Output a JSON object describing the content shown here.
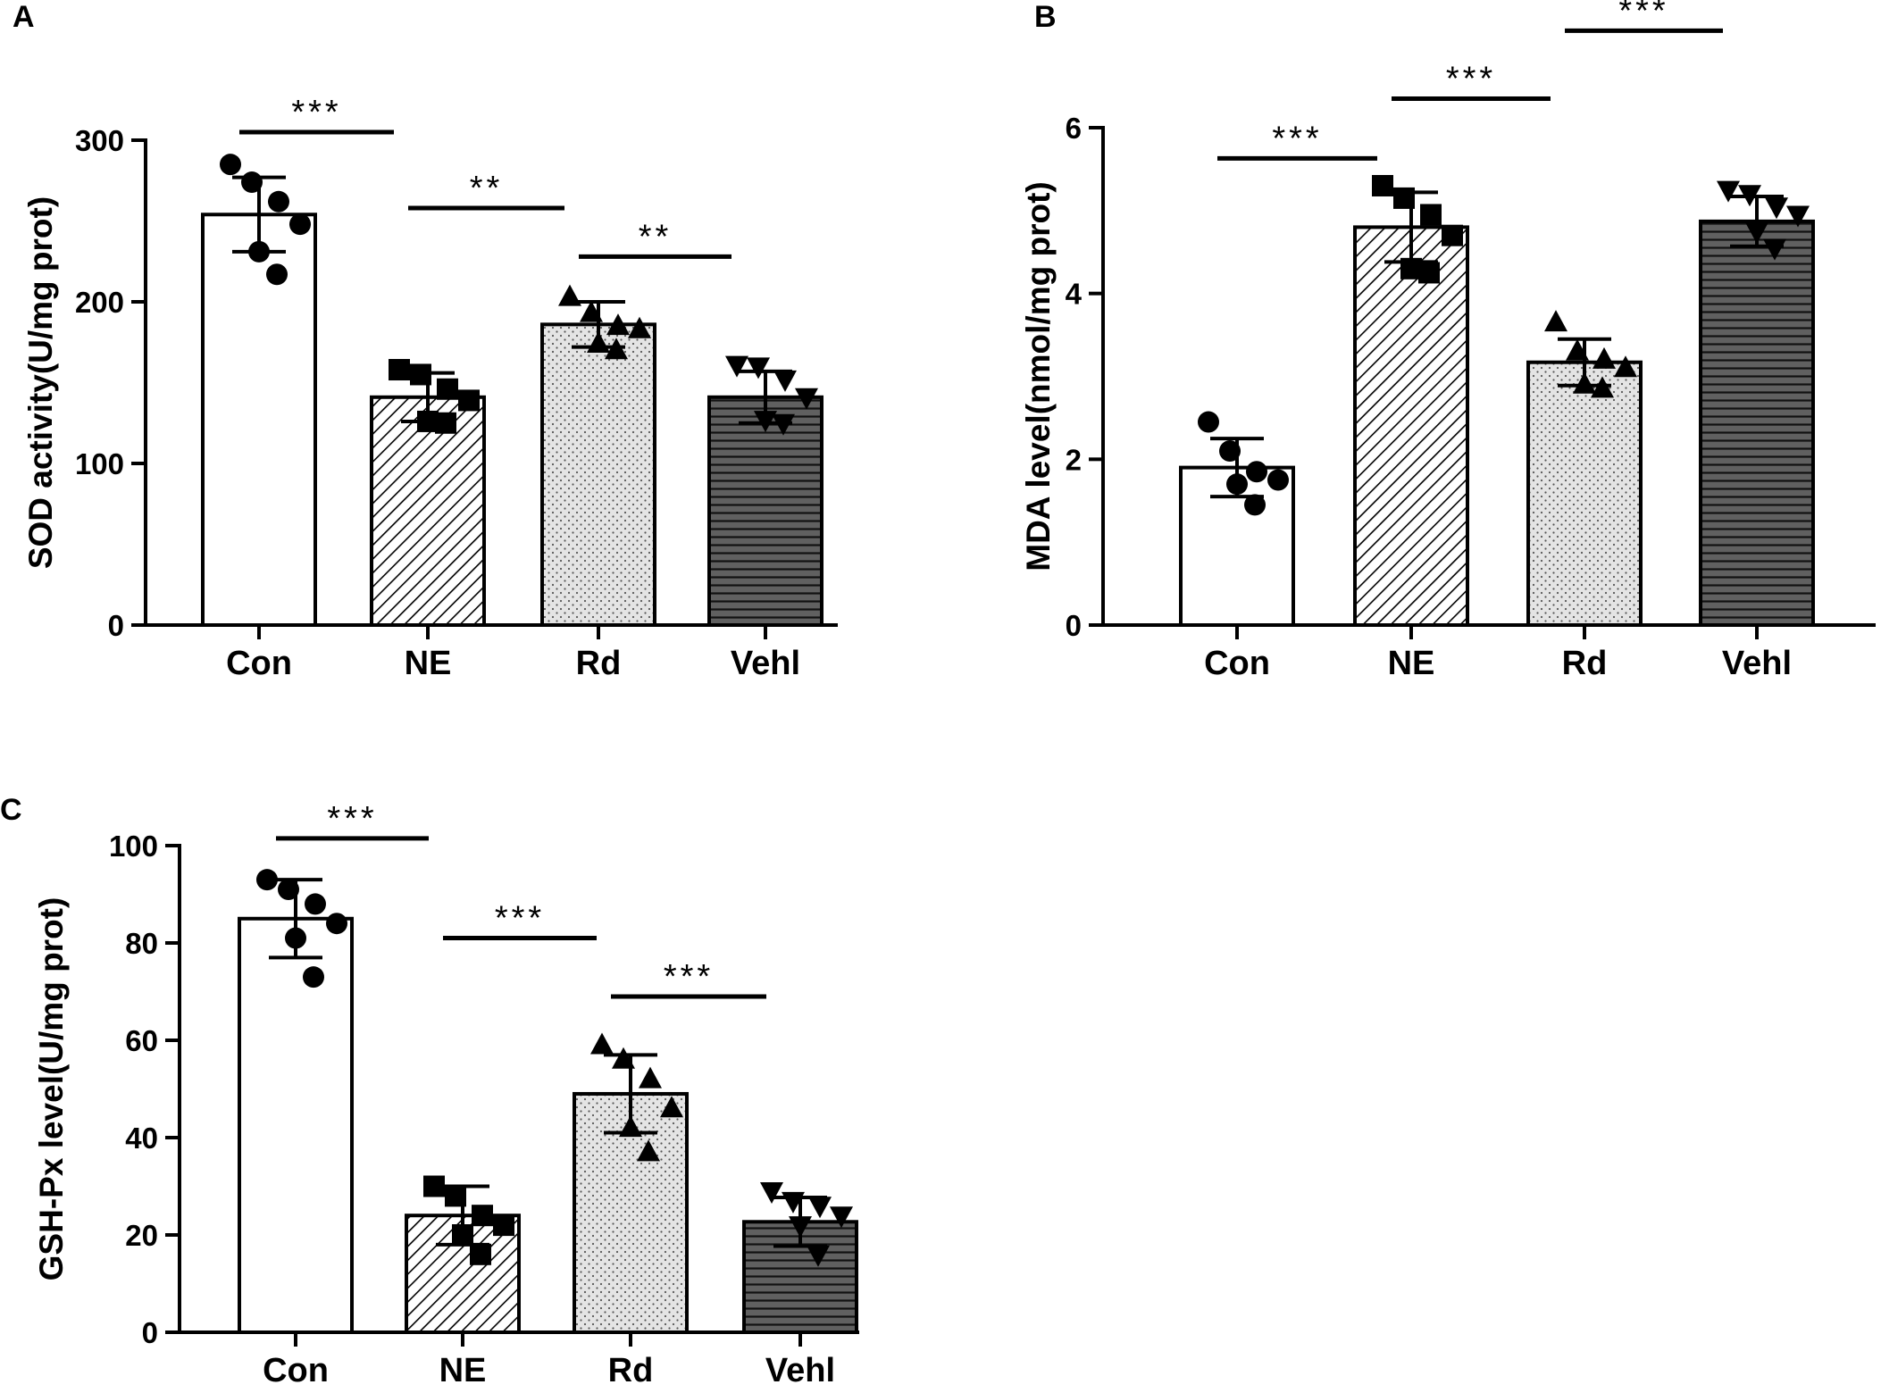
{
  "chart_data": [
    {
      "panel": "A",
      "type": "bar",
      "categories": [
        "Con",
        "NE",
        "Rd",
        "Vehl"
      ],
      "ylabel": "SOD activity(U/mg prot)",
      "ylim": [
        0,
        300
      ],
      "yticks": [
        0,
        100,
        200,
        300
      ],
      "values": [
        254,
        141,
        186,
        141
      ],
      "errors": [
        23,
        15,
        14,
        16
      ],
      "points": [
        [
          285,
          274,
          262,
          248,
          231,
          217
        ],
        [
          158,
          155,
          146,
          139,
          126,
          125
        ],
        [
          203,
          193,
          185,
          183,
          174,
          170
        ],
        [
          161,
          160,
          152,
          141,
          127,
          125
        ]
      ],
      "markers": [
        "circle",
        "square",
        "triangle-up",
        "triangle-down"
      ],
      "patterns": [
        "white",
        "hatch",
        "dots",
        "hlines"
      ],
      "significance": [
        {
          "from": 0,
          "to": 1,
          "label": "***",
          "y": 305
        },
        {
          "from": 1,
          "to": 2,
          "label": "**",
          "y": 258
        },
        {
          "from": 2,
          "to": 3,
          "label": "**",
          "y": 228
        }
      ]
    },
    {
      "panel": "B",
      "type": "bar",
      "categories": [
        "Con",
        "NE",
        "Rd",
        "Vehl"
      ],
      "ylabel": "MDA level(nmol/mg prot)",
      "ylim": [
        0,
        6
      ],
      "yticks": [
        0,
        2,
        4,
        6
      ],
      "values": [
        1.9,
        4.8,
        3.17,
        4.87
      ],
      "errors": [
        0.35,
        0.42,
        0.28,
        0.3
      ],
      "points": [
        [
          2.45,
          2.1,
          1.85,
          1.75,
          1.7,
          1.45
        ],
        [
          5.3,
          5.15,
          4.95,
          4.7,
          4.3,
          4.25
        ],
        [
          3.65,
          3.3,
          3.2,
          3.1,
          2.9,
          2.85
        ],
        [
          5.25,
          5.2,
          5.05,
          4.95,
          4.75,
          4.55
        ]
      ],
      "markers": [
        "circle",
        "square",
        "triangle-up",
        "triangle-down"
      ],
      "patterns": [
        "white",
        "hatch",
        "dots",
        "hlines"
      ],
      "significance": [
        {
          "from": 0,
          "to": 1,
          "label": "***",
          "y": 5.63
        },
        {
          "from": 1,
          "to": 2,
          "label": "***",
          "y": 6.35
        },
        {
          "from": 2,
          "to": 3,
          "label": "***",
          "y": 7.17
        }
      ]
    },
    {
      "panel": "C",
      "type": "bar",
      "categories": [
        "Con",
        "NE",
        "Rd",
        "Vehl"
      ],
      "ylabel": "GSH-Px level(U/mg prot)",
      "ylim": [
        0,
        100
      ],
      "yticks": [
        0,
        20,
        40,
        60,
        80,
        100
      ],
      "values": [
        85,
        24,
        49,
        22.7
      ],
      "errors": [
        8,
        6,
        8,
        5
      ],
      "points": [
        [
          93,
          91,
          88,
          84,
          81,
          73
        ],
        [
          30,
          28,
          24,
          22,
          20,
          16
        ],
        [
          59,
          56,
          52,
          46,
          42,
          37
        ],
        [
          29,
          27,
          26,
          24,
          22,
          16
        ]
      ],
      "markers": [
        "circle",
        "square",
        "triangle-up",
        "triangle-down"
      ],
      "patterns": [
        "white",
        "hatch",
        "dots",
        "hlines"
      ],
      "significance": [
        {
          "from": 0,
          "to": 1,
          "label": "***",
          "y": 101.5
        },
        {
          "from": 1,
          "to": 2,
          "label": "***",
          "y": 81
        },
        {
          "from": 2,
          "to": 3,
          "label": "***",
          "y": 69
        }
      ]
    }
  ]
}
